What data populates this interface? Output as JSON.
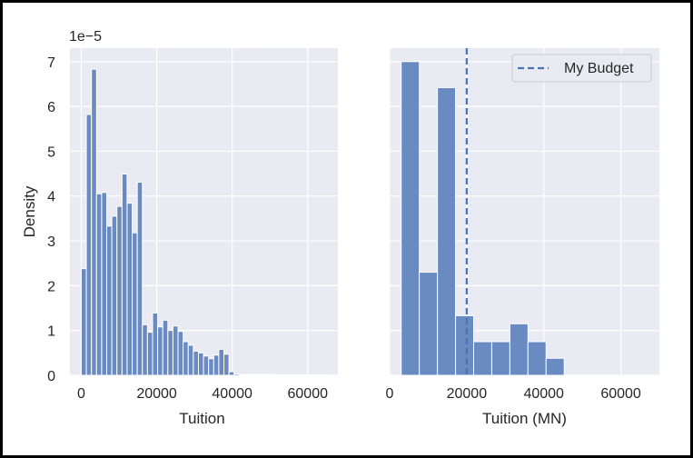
{
  "chart_data": [
    {
      "type": "bar",
      "xlabel": "Tuition",
      "ylabel": "Density",
      "offset_label": "1e−5",
      "xlim": [
        -3000,
        68000
      ],
      "ylim": [
        0,
        7.3
      ],
      "xticks": [
        0,
        20000,
        40000,
        60000
      ],
      "xtick_labels": [
        "0",
        "20000",
        "40000",
        "60000"
      ],
      "yticks": [
        0,
        1,
        2,
        3,
        4,
        5,
        6,
        7
      ],
      "ytick_labels": [
        "0",
        "1",
        "2",
        "3",
        "4",
        "5",
        "6",
        "7"
      ],
      "bin_width": 1350,
      "bin_start": 0,
      "values": [
        2.38,
        5.82,
        6.83,
        4.05,
        4.08,
        3.33,
        3.55,
        3.77,
        4.49,
        3.84,
        3.18,
        4.31,
        1.13,
        0.96,
        1.39,
        1.08,
        1.23,
        1.0,
        1.1,
        0.98,
        0.75,
        0.67,
        0.54,
        0.5,
        0.43,
        0.37,
        0.45,
        0.58,
        0.47,
        0.08,
        0.03,
        0.02,
        0.02,
        0.02,
        0.02,
        0.02,
        0.02,
        0.02,
        0.01,
        0.01,
        0.01,
        0.01,
        0.01,
        0.01,
        0.01,
        0.01,
        0.01,
        0.01
      ],
      "grid": true,
      "bar_color": "#6a8bc1",
      "bar_edge": "#ffffff",
      "background": "#eaeaf2"
    },
    {
      "type": "bar",
      "xlabel": "Tuition (MN)",
      "ylabel": "",
      "xlim": [
        0,
        70000
      ],
      "ylim": [
        0,
        7.3
      ],
      "xticks": [
        0,
        20000,
        40000,
        60000
      ],
      "xtick_labels": [
        "0",
        "20000",
        "40000",
        "60000"
      ],
      "yticks": [
        0,
        1,
        2,
        3,
        4,
        5,
        6,
        7
      ],
      "ytick_labels": [],
      "bin_width": 4700,
      "bin_start": 3000,
      "values": [
        7.0,
        2.3,
        6.42,
        1.33,
        0.75,
        0.75,
        1.15,
        0.75,
        0.38
      ],
      "vline": {
        "x": 20000,
        "label": "My Budget",
        "style": "dashed",
        "color": "#4c72b0"
      },
      "legend": {
        "position": "top-right",
        "entries": [
          "My Budget"
        ]
      },
      "grid": true,
      "bar_color": "#6a8bc1",
      "bar_edge": "#ffffff",
      "background": "#eaeaf2"
    }
  ]
}
